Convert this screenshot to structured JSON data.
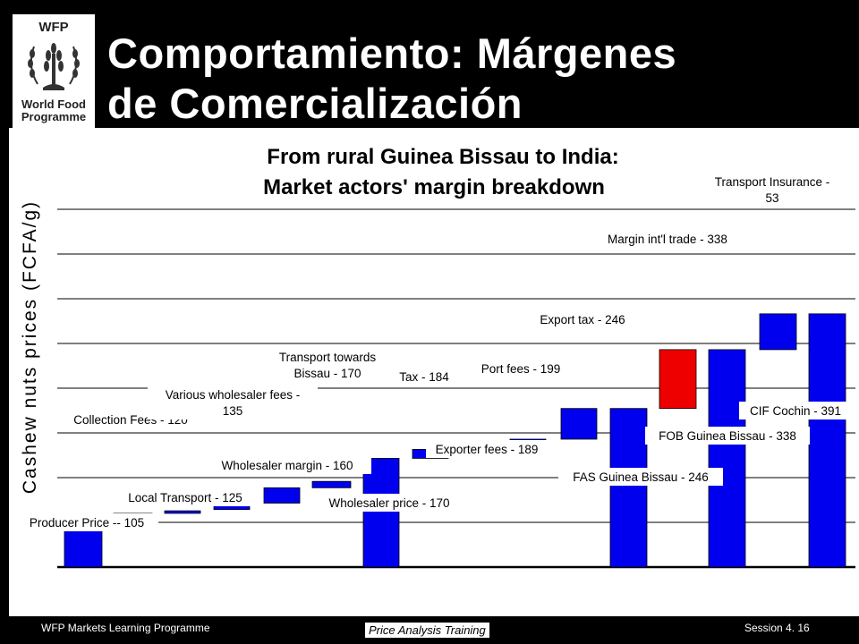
{
  "slide": {
    "title": "Comportamiento:  Márgenes\nde Comercialización",
    "logo": {
      "acronym": "WFP",
      "name": "World Food\nProgramme",
      "icon": "wfp-wheat-wreath-emblem"
    },
    "footer": {
      "left": "WFP Markets Learning Programme",
      "center": "Price Analysis Training",
      "right": "Session 4. 16"
    }
  },
  "chart_data": {
    "type": "bar",
    "subtype": "waterfall",
    "title": "From rural Guinea Bissau to India:",
    "subtitle": "Market actors' margin breakdown",
    "xlabel": "",
    "ylabel": "Cashew nuts prices (FCFA/g)",
    "ylim": [
      70,
      400
    ],
    "grid": true,
    "accent_color": "#0000ee",
    "highlight_color": "#ee0000",
    "bars": [
      {
        "label": "Producer Price -- 105",
        "from": 70,
        "to": 105,
        "kind": "total"
      },
      {
        "label": "Collection Fees - 120",
        "from": 105,
        "to": 112,
        "kind": "step"
      },
      {
        "label": "Local Transport - 125",
        "from": 112,
        "to": 114,
        "kind": "step"
      },
      {
        "label": "Various wholesaler fees - 135",
        "from": 115,
        "to": 120,
        "kind": "step"
      },
      {
        "label": "Wholesaler margin - 160",
        "from": 120,
        "to": 132,
        "kind": "step"
      },
      {
        "label": "Transport towards Bissau - 170",
        "from": 132,
        "to": 137,
        "kind": "step"
      },
      {
        "label": "Wholesaler price - 170",
        "from": 70,
        "to": 155,
        "kind": "total"
      },
      {
        "label": "Tax - 184",
        "from": 155,
        "to": 162,
        "kind": "step"
      },
      {
        "label": "Exporter fees - 189",
        "from": 162,
        "to": 165,
        "kind": "step"
      },
      {
        "label": "Port fees - 199",
        "from": 165,
        "to": 170,
        "kind": "step"
      },
      {
        "label": "Export tax - 246",
        "from": 170,
        "to": 194,
        "kind": "step"
      },
      {
        "label": "FAS Guinea Bissau - 246",
        "from": 70,
        "to": 194,
        "kind": "total"
      },
      {
        "label": "Margin int'l trade - 338",
        "from": 194,
        "to": 240,
        "kind": "highlight"
      },
      {
        "label": "FOB Guinea Bissau - 338",
        "from": 70,
        "to": 240,
        "kind": "total"
      },
      {
        "label": "Transport Insurance - 53",
        "from": 240,
        "to": 268,
        "kind": "step"
      },
      {
        "label": "CIF Cochin - 391",
        "from": 70,
        "to": 268,
        "kind": "total"
      }
    ]
  }
}
